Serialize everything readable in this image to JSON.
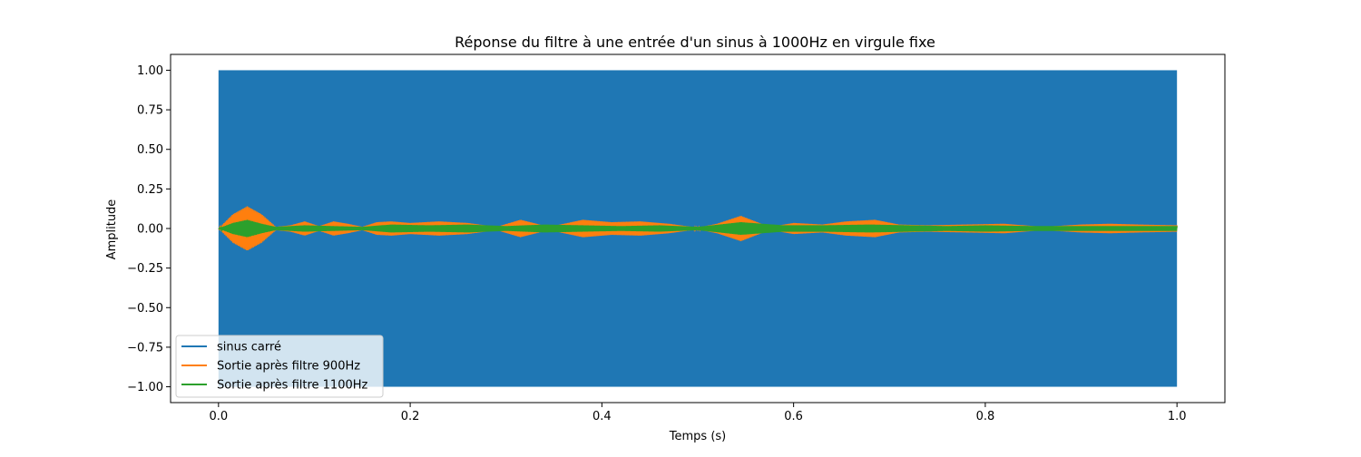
{
  "chart_data": {
    "type": "line",
    "title": "Réponse du filtre à une entrée d'un sinus à 1000Hz en virgule fixe",
    "xlabel": "Temps (s)",
    "ylabel": "Amplitude",
    "xlim": [
      -0.05,
      1.05
    ],
    "ylim": [
      -1.1,
      1.1
    ],
    "x_ticks": [
      0.0,
      0.2,
      0.4,
      0.6,
      0.8,
      1.0
    ],
    "x_tick_labels": [
      "0.0",
      "0.2",
      "0.4",
      "0.6",
      "0.8",
      "1.0"
    ],
    "y_ticks": [
      1.0,
      0.75,
      0.5,
      0.25,
      0.0,
      -0.25,
      -0.5,
      -0.75,
      -1.0
    ],
    "y_tick_labels": [
      "1.00",
      "0.75",
      "0.50",
      "0.25",
      "0.00",
      "−0.25",
      "−0.50",
      "−0.75",
      "−1.00"
    ],
    "grid": false,
    "legend_position": "lower-left",
    "series": [
      {
        "name": "sinus carré",
        "color": "#1f77b4",
        "style": "square-wave",
        "t_start": 0.0,
        "t_end": 1.0,
        "amplitude": 1.0
      },
      {
        "name": "Sortie après filtre 900Hz",
        "color": "#ff7f0e",
        "style": "oscillation-envelope",
        "envelope_t": [
          0.0,
          0.015,
          0.03,
          0.045,
          0.06,
          0.075,
          0.09,
          0.105,
          0.12,
          0.135,
          0.15,
          0.165,
          0.18,
          0.2,
          0.23,
          0.26,
          0.29,
          0.315,
          0.345,
          0.38,
          0.41,
          0.44,
          0.47,
          0.5,
          0.52,
          0.545,
          0.575,
          0.6,
          0.63,
          0.655,
          0.685,
          0.71,
          0.74,
          0.78,
          0.82,
          0.86,
          0.9,
          0.93,
          0.96,
          1.0
        ],
        "envelope_amp": [
          0.0,
          0.09,
          0.14,
          0.09,
          0.01,
          0.02,
          0.045,
          0.015,
          0.045,
          0.03,
          0.01,
          0.04,
          0.045,
          0.035,
          0.045,
          0.035,
          0.01,
          0.055,
          0.01,
          0.055,
          0.04,
          0.045,
          0.03,
          0.005,
          0.03,
          0.08,
          0.01,
          0.035,
          0.025,
          0.045,
          0.055,
          0.025,
          0.02,
          0.025,
          0.03,
          0.01,
          0.025,
          0.03,
          0.025,
          0.02
        ]
      },
      {
        "name": "Sortie après filtre 1100Hz",
        "color": "#2ca02c",
        "style": "oscillation-envelope",
        "envelope_t": [
          0.0,
          0.015,
          0.03,
          0.045,
          0.06,
          0.09,
          0.12,
          0.15,
          0.18,
          0.22,
          0.26,
          0.3,
          0.34,
          0.38,
          0.42,
          0.46,
          0.5,
          0.545,
          0.59,
          0.63,
          0.68,
          0.72,
          0.76,
          0.8,
          0.85,
          0.9,
          0.95,
          1.0
        ],
        "envelope_amp": [
          0.0,
          0.035,
          0.055,
          0.03,
          0.01,
          0.02,
          0.015,
          0.01,
          0.025,
          0.02,
          0.025,
          0.015,
          0.025,
          0.02,
          0.015,
          0.02,
          0.01,
          0.04,
          0.02,
          0.02,
          0.025,
          0.02,
          0.015,
          0.02,
          0.015,
          0.015,
          0.015,
          0.015
        ]
      }
    ]
  }
}
